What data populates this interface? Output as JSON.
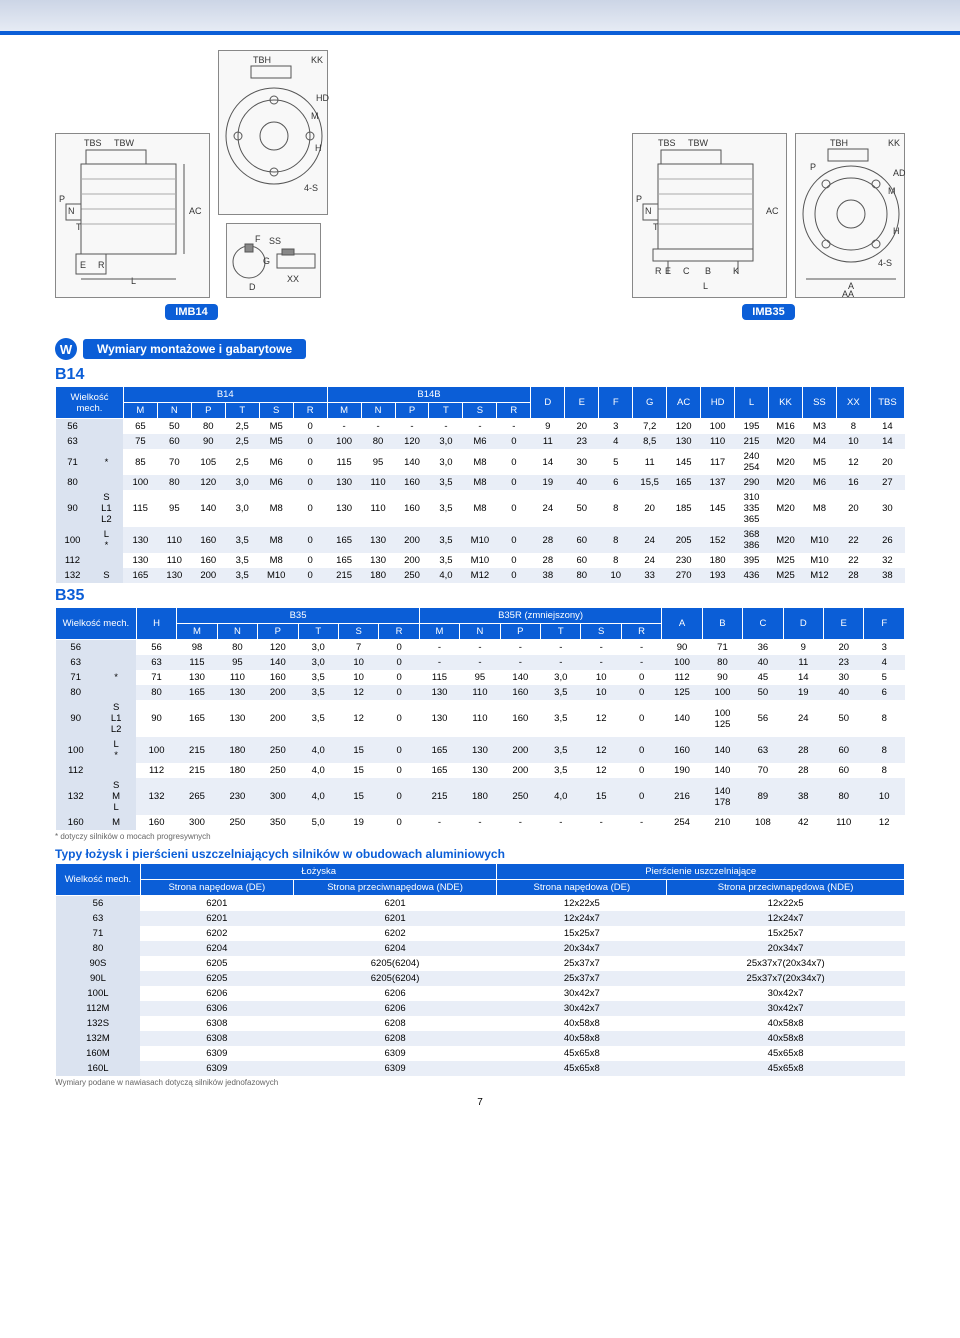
{
  "page_number": "7",
  "top_band_colors": {
    "g1": "#ccd5e6",
    "g2": "#e6ebf4",
    "rule": "#0b5ed7"
  },
  "drawing_labels": {
    "motor1": [
      "TBS",
      "TBW",
      "P",
      "N",
      "T",
      "E",
      "R",
      "L",
      "AC"
    ],
    "flange1": [
      "TBH",
      "KK",
      "HD",
      "M",
      "H",
      "4-S",
      "F",
      "SS",
      "XX",
      "G",
      "D"
    ],
    "motor2": [
      "TBS",
      "TBW",
      "P",
      "N",
      "T",
      "R",
      "E",
      "C",
      "B",
      "K",
      "L",
      "AC"
    ],
    "flange2": [
      "TBH",
      "KK",
      "P",
      "M",
      "AD",
      "H",
      "4-S",
      "A",
      "AA"
    ],
    "tag_b14": "IMB14",
    "tag_b35": "IMB35"
  },
  "section_w": "Wymiary montażowe i gabarytowe",
  "b14": {
    "title": "B14",
    "header_span1": "B14",
    "header_span2": "B14B",
    "col_wielkosc": "Wielkość mech.",
    "cols": [
      "M",
      "N",
      "P",
      "T",
      "S",
      "R",
      "M",
      "N",
      "P",
      "T",
      "S",
      "R",
      "D",
      "E",
      "F",
      "G",
      "AC",
      "HD",
      "L",
      "KK",
      "SS",
      "XX",
      "TBS"
    ],
    "rows": [
      [
        "56",
        "",
        "65",
        "50",
        "80",
        "2,5",
        "M5",
        "0",
        "-",
        "-",
        "-",
        "-",
        "-",
        "-",
        "9",
        "20",
        "3",
        "7,2",
        "120",
        "100",
        "195",
        "M16",
        "M3",
        "8",
        "14"
      ],
      [
        "63",
        "",
        "75",
        "60",
        "90",
        "2,5",
        "M5",
        "0",
        "100",
        "80",
        "120",
        "3,0",
        "M6",
        "0",
        "11",
        "23",
        "4",
        "8,5",
        "130",
        "110",
        "215",
        "M20",
        "M4",
        "10",
        "14"
      ],
      [
        "71",
        "*",
        "85",
        "70",
        "105",
        "2,5",
        "M6",
        "0",
        "115",
        "95",
        "140",
        "3,0",
        "M8",
        "0",
        "14",
        "30",
        "5",
        "11",
        "145",
        "117",
        "240 254",
        "M20",
        "M5",
        "12",
        "20"
      ],
      [
        "80",
        "",
        "100",
        "80",
        "120",
        "3,0",
        "M6",
        "0",
        "130",
        "110",
        "160",
        "3,5",
        "M8",
        "0",
        "19",
        "40",
        "6",
        "15,5",
        "165",
        "137",
        "290",
        "M20",
        "M6",
        "16",
        "27"
      ],
      [
        "90",
        "S L1 L2",
        "115",
        "95",
        "140",
        "3,0",
        "M8",
        "0",
        "130",
        "110",
        "160",
        "3,5",
        "M8",
        "0",
        "24",
        "50",
        "8",
        "20",
        "185",
        "145",
        "310 335 365",
        "M20",
        "M8",
        "20",
        "30"
      ],
      [
        "100",
        "L *",
        "130",
        "110",
        "160",
        "3,5",
        "M8",
        "0",
        "165",
        "130",
        "200",
        "3,5",
        "M10",
        "0",
        "28",
        "60",
        "8",
        "24",
        "205",
        "152",
        "368 386",
        "M20",
        "M10",
        "22",
        "26"
      ],
      [
        "112",
        "",
        "130",
        "110",
        "160",
        "3,5",
        "M8",
        "0",
        "165",
        "130",
        "200",
        "3,5",
        "M10",
        "0",
        "28",
        "60",
        "8",
        "24",
        "230",
        "180",
        "395",
        "M25",
        "M10",
        "22",
        "32"
      ],
      [
        "132",
        "S",
        "165",
        "130",
        "200",
        "3,5",
        "M10",
        "0",
        "215",
        "180",
        "250",
        "4,0",
        "M12",
        "0",
        "38",
        "80",
        "10",
        "33",
        "270",
        "193",
        "436",
        "M25",
        "M12",
        "28",
        "38"
      ]
    ]
  },
  "b35": {
    "title": "B35",
    "header_span1": "B35",
    "header_span2": "B35R (zmniejszony)",
    "col_wielkosc": "Wielkość mech.",
    "col_h": "H",
    "cols_sub": [
      "M",
      "N",
      "P",
      "T",
      "S",
      "R",
      "M",
      "N",
      "P",
      "T",
      "S",
      "R",
      "A",
      "B",
      "C",
      "D",
      "E",
      "F"
    ],
    "rows": [
      [
        "56",
        "",
        "56",
        "98",
        "80",
        "120",
        "3,0",
        "7",
        "0",
        "-",
        "-",
        "-",
        "-",
        "-",
        "-",
        "90",
        "71",
        "36",
        "9",
        "20",
        "3"
      ],
      [
        "63",
        "",
        "63",
        "115",
        "95",
        "140",
        "3,0",
        "10",
        "0",
        "-",
        "-",
        "-",
        "-",
        "-",
        "-",
        "100",
        "80",
        "40",
        "11",
        "23",
        "4"
      ],
      [
        "71",
        "*",
        "71",
        "130",
        "110",
        "160",
        "3,5",
        "10",
        "0",
        "115",
        "95",
        "140",
        "3,0",
        "10",
        "0",
        "112",
        "90",
        "45",
        "14",
        "30",
        "5"
      ],
      [
        "80",
        "",
        "80",
        "165",
        "130",
        "200",
        "3,5",
        "12",
        "0",
        "130",
        "110",
        "160",
        "3,5",
        "10",
        "0",
        "125",
        "100",
        "50",
        "19",
        "40",
        "6"
      ],
      [
        "90",
        "S L1 L2",
        "90",
        "165",
        "130",
        "200",
        "3,5",
        "12",
        "0",
        "130",
        "110",
        "160",
        "3,5",
        "12",
        "0",
        "140",
        "100 125",
        "56",
        "24",
        "50",
        "8"
      ],
      [
        "100",
        "L *",
        "100",
        "215",
        "180",
        "250",
        "4,0",
        "15",
        "0",
        "165",
        "130",
        "200",
        "3,5",
        "12",
        "0",
        "160",
        "140",
        "63",
        "28",
        "60",
        "8"
      ],
      [
        "112",
        "",
        "112",
        "215",
        "180",
        "250",
        "4,0",
        "15",
        "0",
        "165",
        "130",
        "200",
        "3,5",
        "12",
        "0",
        "190",
        "140",
        "70",
        "28",
        "60",
        "8"
      ],
      [
        "132",
        "S M L",
        "132",
        "265",
        "230",
        "300",
        "4,0",
        "15",
        "0",
        "215",
        "180",
        "250",
        "4,0",
        "15",
        "0",
        "216",
        "140 178",
        "89",
        "38",
        "80",
        "10"
      ],
      [
        "160",
        "M",
        "160",
        "300",
        "250",
        "350",
        "5,0",
        "19",
        "0",
        "-",
        "-",
        "-",
        "-",
        "-",
        "-",
        "254",
        "210",
        "108",
        "42",
        "110",
        "12"
      ]
    ],
    "footnote": "* dotyczy silników o mocach progresywnych"
  },
  "bearings": {
    "title": "Typy łożysk i pierścieni uszczelniających silników w obudowach aluminiowych",
    "col_wielkosc": "Wielkość mech.",
    "hdr_loz": "Łożyska",
    "hdr_pier": "Pierścienie uszczelniające",
    "sub_de": "Strona napędowa (DE)",
    "sub_nde": "Strona przeciwnapędowa (NDE)",
    "rows": [
      [
        "56",
        "6201",
        "6201",
        "12x22x5",
        "12x22x5"
      ],
      [
        "63",
        "6201",
        "6201",
        "12x24x7",
        "12x24x7"
      ],
      [
        "71",
        "6202",
        "6202",
        "15x25x7",
        "15x25x7"
      ],
      [
        "80",
        "6204",
        "6204",
        "20x34x7",
        "20x34x7"
      ],
      [
        "90S",
        "6205",
        "6205(6204)",
        "25x37x7",
        "25x37x7(20x34x7)"
      ],
      [
        "90L",
        "6205",
        "6205(6204)",
        "25x37x7",
        "25x37x7(20x34x7)"
      ],
      [
        "100L",
        "6206",
        "6206",
        "30x42x7",
        "30x42x7"
      ],
      [
        "112M",
        "6306",
        "6206",
        "30x42x7",
        "30x42x7"
      ],
      [
        "132S",
        "6308",
        "6208",
        "40x58x8",
        "40x58x8"
      ],
      [
        "132M",
        "6308",
        "6208",
        "40x58x8",
        "40x58x8"
      ],
      [
        "160M",
        "6309",
        "6309",
        "45x65x8",
        "45x65x8"
      ],
      [
        "160L",
        "6309",
        "6309",
        "45x65x8",
        "45x65x8"
      ]
    ],
    "footnote": "Wymiary podane w nawiasach dotyczą silników jednofazowych"
  }
}
